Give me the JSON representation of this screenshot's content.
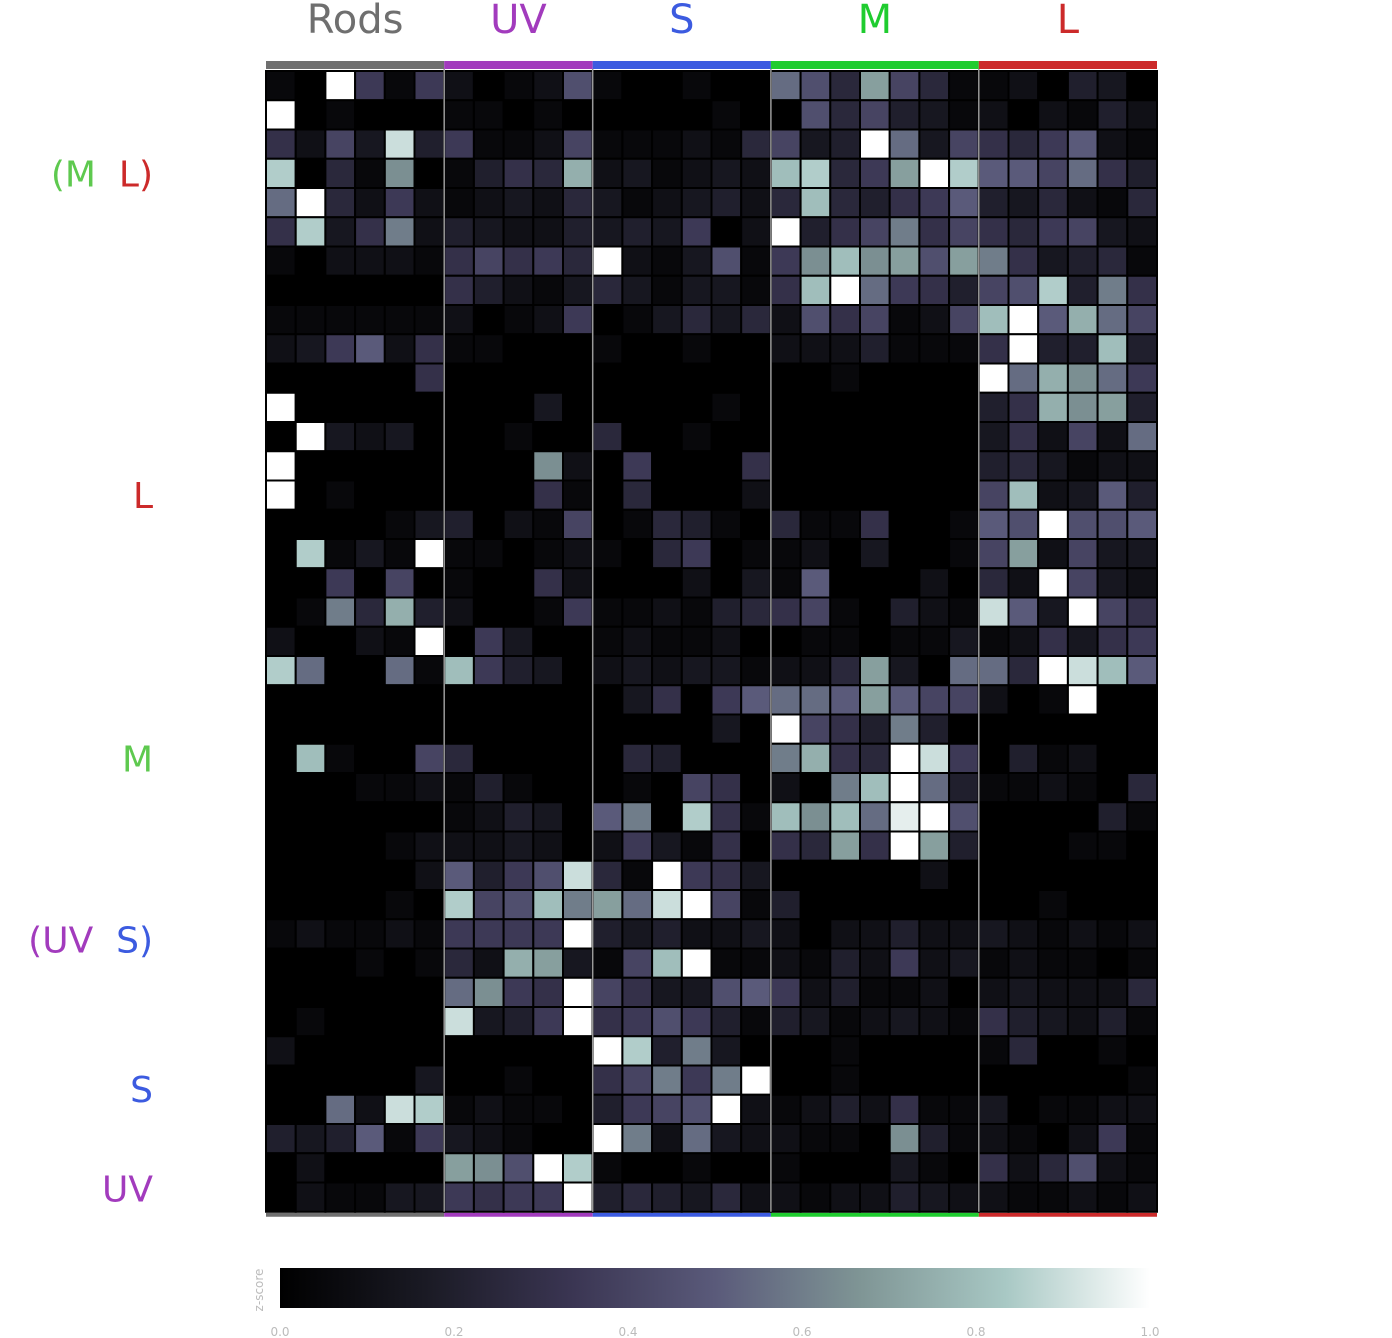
{
  "chart_data": {
    "type": "heatmap",
    "column_groups": [
      {
        "name": "Rods",
        "columns": 6,
        "color": "#6f6f6f"
      },
      {
        "name": "UV",
        "columns": 5,
        "color": "#a23bbd"
      },
      {
        "name": "S",
        "columns": 6,
        "color": "#3c5be0"
      },
      {
        "name": "M",
        "columns": 7,
        "color": "#1fcc2f"
      },
      {
        "name": "L",
        "columns": 6,
        "color": "#cc2a2a"
      }
    ],
    "row_labels": [
      {
        "parts": [
          {
            "text": "(M",
            "color": "#5ec94f"
          },
          {
            "text": "L)",
            "color": "#cc2a2a"
          }
        ],
        "row": 3.5
      },
      {
        "parts": [
          {
            "text": "L",
            "color": "#cc2a2a"
          }
        ],
        "row": 14.5
      },
      {
        "parts": [
          {
            "text": "M",
            "color": "#5ec94f"
          }
        ],
        "row": 23.5
      },
      {
        "parts": [
          {
            "text": "(UV",
            "color": "#a23bbd"
          },
          {
            "text": "S)",
            "color": "#3c5be0"
          }
        ],
        "row": 29.7
      },
      {
        "parts": [
          {
            "text": "S",
            "color": "#3c5be0"
          }
        ],
        "row": 34.8
      },
      {
        "parts": [
          {
            "text": "UV",
            "color": "#a23bbd"
          }
        ],
        "row": 38.2
      }
    ],
    "colorbar": {
      "label": "z-score",
      "range": [
        0,
        1
      ],
      "ticks": [
        "0.0",
        "0.2",
        "0.4",
        "0.6",
        "0.8",
        "1.0"
      ],
      "colors": [
        "#000000",
        "#1a1a24",
        "#3a3552",
        "#5a5a7a",
        "#7f9595",
        "#a8c8c4",
        "#ffffff"
      ]
    },
    "values": [
      [
        0.05,
        0.0,
        1.0,
        0.35,
        0.05,
        0.35,
        0.1,
        0.0,
        0.05,
        0.1,
        0.45,
        0.05,
        0.0,
        0.0,
        0.05,
        0.0,
        0.0,
        0.55,
        0.45,
        0.25,
        0.7,
        0.4,
        0.25,
        0.05,
        0.05,
        0.1,
        0.0,
        0.2,
        0.15,
        0.0
      ],
      [
        1.0,
        0.0,
        0.05,
        0.0,
        0.0,
        0.0,
        0.05,
        0.05,
        0.0,
        0.05,
        0.0,
        0.0,
        0.0,
        0.0,
        0.0,
        0.05,
        0.0,
        0.0,
        0.45,
        0.25,
        0.4,
        0.2,
        0.15,
        0.05,
        0.1,
        0.0,
        0.1,
        0.05,
        0.2,
        0.1
      ],
      [
        0.3,
        0.1,
        0.4,
        0.15,
        0.9,
        0.2,
        0.35,
        0.05,
        0.05,
        0.1,
        0.4,
        0.05,
        0.05,
        0.05,
        0.1,
        0.05,
        0.25,
        0.4,
        0.15,
        0.2,
        1.0,
        0.55,
        0.15,
        0.4,
        0.3,
        0.25,
        0.35,
        0.5,
        0.1,
        0.05
      ],
      [
        0.85,
        0.0,
        0.25,
        0.05,
        0.65,
        0.0,
        0.05,
        0.2,
        0.3,
        0.25,
        0.75,
        0.1,
        0.15,
        0.05,
        0.1,
        0.15,
        0.1,
        0.8,
        0.85,
        0.25,
        0.35,
        0.7,
        1.0,
        0.85,
        0.5,
        0.5,
        0.4,
        0.55,
        0.3,
        0.2
      ],
      [
        0.55,
        1.0,
        0.25,
        0.1,
        0.35,
        0.1,
        0.05,
        0.1,
        0.15,
        0.1,
        0.25,
        0.15,
        0.05,
        0.1,
        0.15,
        0.2,
        0.1,
        0.25,
        0.8,
        0.25,
        0.2,
        0.3,
        0.35,
        0.5,
        0.2,
        0.15,
        0.25,
        0.1,
        0.05,
        0.25
      ],
      [
        0.3,
        0.85,
        0.15,
        0.3,
        0.6,
        0.1,
        0.2,
        0.15,
        0.1,
        0.1,
        0.2,
        0.15,
        0.2,
        0.15,
        0.35,
        0.0,
        0.1,
        1.0,
        0.2,
        0.3,
        0.4,
        0.6,
        0.3,
        0.4,
        0.3,
        0.25,
        0.35,
        0.4,
        0.15,
        0.1
      ],
      [
        0.05,
        0.0,
        0.1,
        0.1,
        0.1,
        0.05,
        0.3,
        0.4,
        0.3,
        0.35,
        0.25,
        1.0,
        0.1,
        0.05,
        0.15,
        0.45,
        0.05,
        0.35,
        0.65,
        0.8,
        0.65,
        0.7,
        0.45,
        0.7,
        0.6,
        0.3,
        0.15,
        0.2,
        0.25,
        0.05
      ],
      [
        0.0,
        0.0,
        0.0,
        0.0,
        0.0,
        0.0,
        0.3,
        0.2,
        0.1,
        0.05,
        0.15,
        0.25,
        0.15,
        0.05,
        0.15,
        0.15,
        0.05,
        0.3,
        0.8,
        1.0,
        0.55,
        0.35,
        0.3,
        0.2,
        0.4,
        0.45,
        0.85,
        0.2,
        0.6,
        0.3
      ],
      [
        0.05,
        0.05,
        0.05,
        0.05,
        0.05,
        0.05,
        0.1,
        0.0,
        0.05,
        0.1,
        0.35,
        0.0,
        0.05,
        0.15,
        0.25,
        0.15,
        0.25,
        0.1,
        0.45,
        0.3,
        0.4,
        0.05,
        0.1,
        0.4,
        0.8,
        1.0,
        0.5,
        0.75,
        0.55,
        0.4
      ],
      [
        0.1,
        0.15,
        0.35,
        0.5,
        0.1,
        0.3,
        0.05,
        0.05,
        0.0,
        0.0,
        0.0,
        0.05,
        0.0,
        0.0,
        0.05,
        0.0,
        0.0,
        0.1,
        0.1,
        0.1,
        0.2,
        0.05,
        0.05,
        0.05,
        0.3,
        1.0,
        0.2,
        0.2,
        0.8,
        0.2
      ],
      [
        0.0,
        0.0,
        0.0,
        0.0,
        0.0,
        0.3,
        0.0,
        0.0,
        0.0,
        0.0,
        0.0,
        0.0,
        0.0,
        0.0,
        0.0,
        0.0,
        0.0,
        0.0,
        0.0,
        0.05,
        0.0,
        0.0,
        0.0,
        0.0,
        1.0,
        0.55,
        0.75,
        0.65,
        0.55,
        0.35
      ],
      [
        1.0,
        0.0,
        0.0,
        0.0,
        0.0,
        0.0,
        0.0,
        0.0,
        0.0,
        0.15,
        0.0,
        0.0,
        0.0,
        0.0,
        0.0,
        0.05,
        0.0,
        0.0,
        0.0,
        0.0,
        0.0,
        0.0,
        0.0,
        0.0,
        0.2,
        0.3,
        0.75,
        0.65,
        0.7,
        0.2
      ],
      [
        0.0,
        1.0,
        0.15,
        0.1,
        0.15,
        0.0,
        0.0,
        0.0,
        0.05,
        0.0,
        0.0,
        0.25,
        0.0,
        0.0,
        0.05,
        0.0,
        0.0,
        0.0,
        0.0,
        0.0,
        0.0,
        0.0,
        0.0,
        0.0,
        0.15,
        0.3,
        0.1,
        0.4,
        0.1,
        0.55
      ],
      [
        1.0,
        0.0,
        0.0,
        0.0,
        0.0,
        0.0,
        0.0,
        0.0,
        0.0,
        0.65,
        0.1,
        0.0,
        0.35,
        0.0,
        0.0,
        0.0,
        0.3,
        0.0,
        0.0,
        0.0,
        0.0,
        0.0,
        0.0,
        0.0,
        0.2,
        0.25,
        0.15,
        0.05,
        0.1,
        0.1
      ],
      [
        1.0,
        0.0,
        0.05,
        0.0,
        0.0,
        0.0,
        0.0,
        0.0,
        0.0,
        0.3,
        0.05,
        0.0,
        0.25,
        0.0,
        0.0,
        0.0,
        0.1,
        0.0,
        0.0,
        0.0,
        0.0,
        0.0,
        0.0,
        0.0,
        0.4,
        0.8,
        0.1,
        0.15,
        0.5,
        0.2
      ],
      [
        0.0,
        0.0,
        0.0,
        0.0,
        0.05,
        0.15,
        0.2,
        0.0,
        0.1,
        0.05,
        0.4,
        0.0,
        0.05,
        0.25,
        0.2,
        0.05,
        0.0,
        0.25,
        0.05,
        0.05,
        0.3,
        0.0,
        0.0,
        0.05,
        0.5,
        0.45,
        1.0,
        0.45,
        0.45,
        0.5
      ],
      [
        0.0,
        0.85,
        0.05,
        0.15,
        0.05,
        1.0,
        0.05,
        0.05,
        0.0,
        0.05,
        0.1,
        0.05,
        0.0,
        0.25,
        0.35,
        0.0,
        0.05,
        0.05,
        0.1,
        0.0,
        0.15,
        0.0,
        0.0,
        0.05,
        0.4,
        0.7,
        0.1,
        0.4,
        0.15,
        0.15
      ],
      [
        0.0,
        0.0,
        0.35,
        0.0,
        0.4,
        0.0,
        0.05,
        0.0,
        0.0,
        0.3,
        0.1,
        0.0,
        0.0,
        0.0,
        0.1,
        0.0,
        0.15,
        0.05,
        0.5,
        0.0,
        0.0,
        0.0,
        0.1,
        0.0,
        0.25,
        0.1,
        1.0,
        0.4,
        0.15,
        0.1
      ],
      [
        0.0,
        0.05,
        0.6,
        0.25,
        0.75,
        0.2,
        0.1,
        0.0,
        0.0,
        0.05,
        0.35,
        0.05,
        0.05,
        0.1,
        0.05,
        0.2,
        0.25,
        0.3,
        0.4,
        0.05,
        0.0,
        0.2,
        0.1,
        0.05,
        0.9,
        0.5,
        0.15,
        1.0,
        0.4,
        0.3
      ],
      [
        0.1,
        0.0,
        0.0,
        0.1,
        0.05,
        1.0,
        0.0,
        0.35,
        0.15,
        0.0,
        0.0,
        0.05,
        0.1,
        0.05,
        0.05,
        0.1,
        0.0,
        0.0,
        0.05,
        0.05,
        0.0,
        0.05,
        0.05,
        0.15,
        0.05,
        0.1,
        0.3,
        0.15,
        0.3,
        0.35
      ],
      [
        0.85,
        0.55,
        0.0,
        0.0,
        0.55,
        0.05,
        0.8,
        0.35,
        0.2,
        0.15,
        0.0,
        0.1,
        0.15,
        0.1,
        0.15,
        0.15,
        0.05,
        0.1,
        0.1,
        0.25,
        0.7,
        0.15,
        0.0,
        0.55,
        0.55,
        0.25,
        1.0,
        0.9,
        0.8,
        0.5
      ],
      [
        0.0,
        0.0,
        0.0,
        0.0,
        0.0,
        0.0,
        0.0,
        0.0,
        0.0,
        0.0,
        0.0,
        0.0,
        0.15,
        0.3,
        0.0,
        0.35,
        0.5,
        0.55,
        0.55,
        0.5,
        0.7,
        0.5,
        0.4,
        0.4,
        0.1,
        0.0,
        0.05,
        1.0,
        0.0,
        0.0
      ],
      [
        0.0,
        0.0,
        0.0,
        0.0,
        0.0,
        0.0,
        0.0,
        0.0,
        0.0,
        0.0,
        0.0,
        0.0,
        0.0,
        0.0,
        0.0,
        0.15,
        0.0,
        1.0,
        0.4,
        0.3,
        0.2,
        0.6,
        0.2,
        0.0,
        0.0,
        0.0,
        0.0,
        0.0,
        0.0,
        0.0
      ],
      [
        0.0,
        0.8,
        0.05,
        0.0,
        0.0,
        0.4,
        0.25,
        0.0,
        0.0,
        0.0,
        0.0,
        0.0,
        0.25,
        0.2,
        0.0,
        0.0,
        0.0,
        0.6,
        0.75,
        0.3,
        0.25,
        1.0,
        0.9,
        0.35,
        0.0,
        0.2,
        0.05,
        0.1,
        0.0,
        0.0
      ],
      [
        0.0,
        0.0,
        0.0,
        0.05,
        0.05,
        0.1,
        0.05,
        0.2,
        0.05,
        0.0,
        0.0,
        0.0,
        0.05,
        0.0,
        0.4,
        0.3,
        0.0,
        0.1,
        0.0,
        0.6,
        0.8,
        1.0,
        0.55,
        0.2,
        0.05,
        0.05,
        0.1,
        0.05,
        0.0,
        0.25
      ],
      [
        0.0,
        0.0,
        0.0,
        0.0,
        0.0,
        0.0,
        0.05,
        0.1,
        0.2,
        0.15,
        0.0,
        0.5,
        0.6,
        0.0,
        0.85,
        0.3,
        0.05,
        0.8,
        0.65,
        0.8,
        0.55,
        0.95,
        1.0,
        0.45,
        0.0,
        0.0,
        0.0,
        0.0,
        0.2,
        0.05
      ],
      [
        0.0,
        0.0,
        0.0,
        0.0,
        0.05,
        0.1,
        0.1,
        0.1,
        0.15,
        0.1,
        0.0,
        0.1,
        0.35,
        0.15,
        0.05,
        0.3,
        0.0,
        0.3,
        0.25,
        0.7,
        0.3,
        1.0,
        0.7,
        0.2,
        0.0,
        0.0,
        0.0,
        0.05,
        0.05,
        0.0
      ],
      [
        0.0,
        0.0,
        0.0,
        0.0,
        0.0,
        0.1,
        0.5,
        0.2,
        0.35,
        0.45,
        0.9,
        0.25,
        0.05,
        1.0,
        0.35,
        0.3,
        0.15,
        0.0,
        0.0,
        0.0,
        0.0,
        0.0,
        0.1,
        0.0,
        0.0,
        0.0,
        0.0,
        0.0,
        0.0,
        0.0
      ],
      [
        0.0,
        0.0,
        0.0,
        0.0,
        0.05,
        0.0,
        0.85,
        0.4,
        0.45,
        0.8,
        0.6,
        0.7,
        0.55,
        0.9,
        1.0,
        0.4,
        0.05,
        0.2,
        0.0,
        0.0,
        0.0,
        0.0,
        0.0,
        0.0,
        0.0,
        0.0,
        0.05,
        0.0,
        0.0,
        0.0
      ],
      [
        0.05,
        0.1,
        0.05,
        0.05,
        0.1,
        0.05,
        0.35,
        0.35,
        0.35,
        0.35,
        1.0,
        0.2,
        0.15,
        0.2,
        0.1,
        0.1,
        0.15,
        0.1,
        0.0,
        0.1,
        0.1,
        0.2,
        0.1,
        0.1,
        0.15,
        0.1,
        0.05,
        0.1,
        0.05,
        0.1
      ],
      [
        0.0,
        0.0,
        0.0,
        0.05,
        0.0,
        0.05,
        0.25,
        0.1,
        0.75,
        0.7,
        0.15,
        0.05,
        0.4,
        0.8,
        1.0,
        0.05,
        0.05,
        0.1,
        0.05,
        0.2,
        0.1,
        0.35,
        0.1,
        0.15,
        0.05,
        0.1,
        0.05,
        0.05,
        0.0,
        0.05
      ],
      [
        0.0,
        0.0,
        0.0,
        0.0,
        0.0,
        0.0,
        0.55,
        0.65,
        0.35,
        0.3,
        1.0,
        0.4,
        0.3,
        0.15,
        0.15,
        0.45,
        0.5,
        0.35,
        0.1,
        0.2,
        0.05,
        0.05,
        0.1,
        0.0,
        0.1,
        0.15,
        0.1,
        0.1,
        0.1,
        0.25
      ],
      [
        0.0,
        0.05,
        0.0,
        0.0,
        0.0,
        0.0,
        0.9,
        0.15,
        0.2,
        0.35,
        1.0,
        0.3,
        0.35,
        0.45,
        0.35,
        0.2,
        0.05,
        0.2,
        0.15,
        0.05,
        0.1,
        0.15,
        0.1,
        0.05,
        0.3,
        0.2,
        0.15,
        0.1,
        0.2,
        0.05
      ],
      [
        0.1,
        0.0,
        0.0,
        0.0,
        0.0,
        0.0,
        0.0,
        0.0,
        0.0,
        0.0,
        0.0,
        1.0,
        0.85,
        0.2,
        0.6,
        0.15,
        0.0,
        0.0,
        0.0,
        0.05,
        0.0,
        0.0,
        0.0,
        0.0,
        0.05,
        0.25,
        0.0,
        0.0,
        0.05,
        0.0
      ],
      [
        0.0,
        0.0,
        0.0,
        0.0,
        0.0,
        0.15,
        0.0,
        0.0,
        0.05,
        0.0,
        0.0,
        0.3,
        0.4,
        0.6,
        0.35,
        0.6,
        1.0,
        0.0,
        0.0,
        0.05,
        0.0,
        0.0,
        0.0,
        0.0,
        0.0,
        0.0,
        0.0,
        0.0,
        0.0,
        0.05
      ],
      [
        0.0,
        0.0,
        0.55,
        0.1,
        0.9,
        0.85,
        0.05,
        0.1,
        0.05,
        0.05,
        0.0,
        0.2,
        0.35,
        0.4,
        0.45,
        1.0,
        0.1,
        0.05,
        0.1,
        0.2,
        0.1,
        0.3,
        0.05,
        0.05,
        0.15,
        0.0,
        0.05,
        0.05,
        0.1,
        0.1
      ],
      [
        0.2,
        0.15,
        0.2,
        0.5,
        0.05,
        0.35,
        0.15,
        0.1,
        0.05,
        0.0,
        0.0,
        1.0,
        0.6,
        0.1,
        0.55,
        0.15,
        0.1,
        0.1,
        0.05,
        0.05,
        0.0,
        0.65,
        0.2,
        0.05,
        0.1,
        0.05,
        0.0,
        0.1,
        0.35,
        0.05
      ],
      [
        0.0,
        0.1,
        0.0,
        0.0,
        0.0,
        0.0,
        0.7,
        0.65,
        0.45,
        1.0,
        0.85,
        0.05,
        0.0,
        0.0,
        0.05,
        0.0,
        0.0,
        0.05,
        0.0,
        0.0,
        0.0,
        0.15,
        0.05,
        0.0,
        0.3,
        0.1,
        0.25,
        0.45,
        0.1,
        0.05
      ],
      [
        0.0,
        0.1,
        0.05,
        0.05,
        0.15,
        0.15,
        0.35,
        0.3,
        0.35,
        0.35,
        1.0,
        0.2,
        0.25,
        0.2,
        0.15,
        0.25,
        0.1,
        0.1,
        0.05,
        0.1,
        0.1,
        0.2,
        0.15,
        0.1,
        0.1,
        0.05,
        0.05,
        0.1,
        0.05,
        0.1
      ]
    ]
  }
}
